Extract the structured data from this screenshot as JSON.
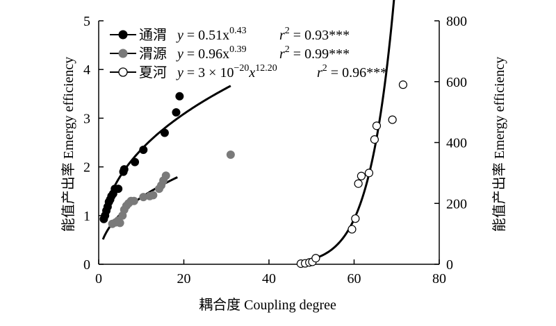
{
  "chart_data": {
    "type": "scatter",
    "xlabel": "耦合度 Coupling degree",
    "ylabel_left": "能值产出率 Emergy efficiency",
    "ylabel_right": "能值产出率 Emergy efficiency",
    "xlim": [
      0,
      80
    ],
    "ylim_left": [
      0,
      5
    ],
    "ylim_right": [
      0,
      800
    ],
    "x_ticks": [
      "0",
      "20",
      "40",
      "60",
      "80"
    ],
    "y_ticks_left": [
      "0",
      "1",
      "2",
      "3",
      "4",
      "5"
    ],
    "y_ticks_right": [
      "0",
      "200",
      "400",
      "600",
      "800"
    ],
    "series": [
      {
        "name": "通渭",
        "marker": "filled-black",
        "color": "#000000",
        "axis": "left",
        "fit": {
          "a": 0.51,
          "b": 0.43,
          "x_range": [
            1,
            18.5
          ]
        },
        "equation": "y = 0.51x^0.43",
        "r2": "r² = 0.93***",
        "points": [
          [
            1.2,
            0.93
          ],
          [
            1.5,
            1.0
          ],
          [
            1.8,
            1.1
          ],
          [
            2.1,
            1.18
          ],
          [
            2.4,
            1.28
          ],
          [
            2.7,
            1.33
          ],
          [
            3.0,
            1.4
          ],
          [
            3.4,
            1.45
          ],
          [
            3.8,
            1.55
          ],
          [
            4.6,
            1.55
          ],
          [
            5.8,
            1.9
          ],
          [
            6.0,
            1.95
          ],
          [
            8.5,
            2.1
          ],
          [
            10.5,
            2.35
          ],
          [
            15.5,
            2.7
          ],
          [
            18.2,
            3.12
          ],
          [
            19.0,
            3.45
          ]
        ]
      },
      {
        "name": "渭源",
        "marker": "filled-gray",
        "color": "#7a7a7a",
        "axis": "left",
        "fit": {
          "a": 0.96,
          "b": 0.39,
          "x_range": [
            3,
            31
          ]
        },
        "equation": "y = 0.96x^0.39",
        "r2": "r² = 0.99***",
        "points": [
          [
            3.2,
            0.83
          ],
          [
            4.0,
            0.86
          ],
          [
            4.6,
            0.9
          ],
          [
            5.0,
            0.85
          ],
          [
            5.6,
            1.0
          ],
          [
            6.0,
            1.12
          ],
          [
            6.5,
            1.2
          ],
          [
            7.0,
            1.25
          ],
          [
            7.6,
            1.3
          ],
          [
            8.3,
            1.3
          ],
          [
            10.5,
            1.38
          ],
          [
            12.0,
            1.4
          ],
          [
            12.8,
            1.42
          ],
          [
            14.2,
            1.55
          ],
          [
            14.7,
            1.62
          ],
          [
            15.2,
            1.72
          ],
          [
            15.8,
            1.82
          ],
          [
            31.0,
            2.25
          ]
        ]
      },
      {
        "name": "夏河",
        "marker": "open-circle",
        "color": "#000000",
        "axis": "right",
        "fit": {
          "a": 3e-20,
          "b": 12.2,
          "x_range": [
            47,
            71.5
          ]
        },
        "equation": "y = 3×10^-20 x^12.20",
        "r2": "r² = 0.96***",
        "points": [
          [
            47.5,
            2
          ],
          [
            48.5,
            3
          ],
          [
            49.5,
            6
          ],
          [
            50.2,
            8
          ],
          [
            51.0,
            20
          ],
          [
            59.5,
            115
          ],
          [
            60.3,
            150
          ],
          [
            61.0,
            265
          ],
          [
            61.7,
            290
          ],
          [
            63.5,
            300
          ],
          [
            64.8,
            410
          ],
          [
            65.3,
            455
          ],
          [
            69.0,
            475
          ],
          [
            71.5,
            590
          ]
        ]
      }
    ],
    "legend": {
      "position": "top-left",
      "entries": [
        {
          "label": "通渭",
          "eq_prefix": "y = 0.51x",
          "eq_exp": "0.43",
          "r2": "r",
          "r2_val": " = 0.93***"
        },
        {
          "label": "渭源",
          "eq_prefix": "y = 0.96x",
          "eq_exp": "0.39",
          "r2": "r",
          "r2_val": " = 0.99***"
        },
        {
          "label": "夏河",
          "eq_prefix": "y = 3 × 10",
          "eq_exp": "−20",
          "eq_suffix": "x",
          "eq_exp2": "12.20",
          "r2": "r",
          "r2_val": " = 0.96***"
        }
      ]
    }
  }
}
